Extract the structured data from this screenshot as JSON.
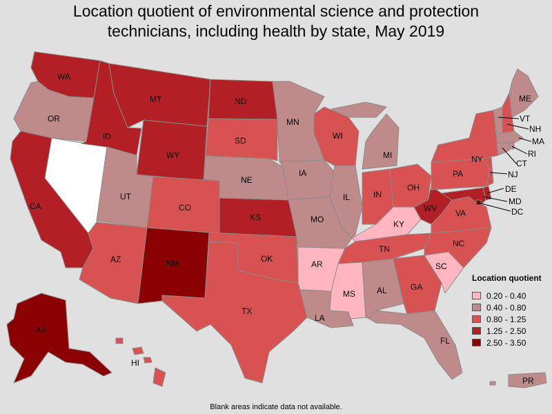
{
  "title": {
    "line1": "Location quotient of environmental science and protection",
    "line2": "technicians, including health by state, May 2019"
  },
  "legend": {
    "title": "Location quotient",
    "items": [
      {
        "label": "0.20 - 0.40",
        "color": "#ffb6c1"
      },
      {
        "label": "0.40 - 0.80",
        "color": "#bf8a8a"
      },
      {
        "label": "0.80 - 1.25",
        "color": "#d95252"
      },
      {
        "label": "1.25 - 2.50",
        "color": "#b21f24"
      },
      {
        "label": "2.50 - 3.50",
        "color": "#8b0000"
      }
    ]
  },
  "no_data_color": "#ffffff",
  "states": [
    {
      "code": "WA",
      "bin": 3
    },
    {
      "code": "OR",
      "bin": 1
    },
    {
      "code": "CA",
      "bin": 3
    },
    {
      "code": "NV",
      "bin": -1
    },
    {
      "code": "ID",
      "bin": 3
    },
    {
      "code": "MT",
      "bin": 3
    },
    {
      "code": "WY",
      "bin": 3
    },
    {
      "code": "UT",
      "bin": 1
    },
    {
      "code": "AZ",
      "bin": 2
    },
    {
      "code": "CO",
      "bin": 2
    },
    {
      "code": "NM",
      "bin": 4
    },
    {
      "code": "ND",
      "bin": 3
    },
    {
      "code": "SD",
      "bin": 2
    },
    {
      "code": "NE",
      "bin": 1
    },
    {
      "code": "KS",
      "bin": 3
    },
    {
      "code": "OK",
      "bin": 2
    },
    {
      "code": "TX",
      "bin": 2
    },
    {
      "code": "MN",
      "bin": 1
    },
    {
      "code": "IA",
      "bin": 1
    },
    {
      "code": "MO",
      "bin": 1
    },
    {
      "code": "AR",
      "bin": 0
    },
    {
      "code": "LA",
      "bin": 1
    },
    {
      "code": "WI",
      "bin": 2
    },
    {
      "code": "IL",
      "bin": 1
    },
    {
      "code": "MS",
      "bin": 0
    },
    {
      "code": "MI",
      "bin": 1
    },
    {
      "code": "IN",
      "bin": 2
    },
    {
      "code": "KY",
      "bin": 0
    },
    {
      "code": "TN",
      "bin": 2
    },
    {
      "code": "AL",
      "bin": 1
    },
    {
      "code": "OH",
      "bin": 2
    },
    {
      "code": "WV",
      "bin": 3
    },
    {
      "code": "GA",
      "bin": 2
    },
    {
      "code": "FL",
      "bin": 1
    },
    {
      "code": "SC",
      "bin": 0
    },
    {
      "code": "NC",
      "bin": 2
    },
    {
      "code": "VA",
      "bin": 2
    },
    {
      "code": "PA",
      "bin": 2
    },
    {
      "code": "NY",
      "bin": 2
    },
    {
      "code": "ME",
      "bin": 1
    },
    {
      "code": "VT",
      "bin": 1
    },
    {
      "code": "NH",
      "bin": 2
    },
    {
      "code": "MA",
      "bin": 1
    },
    {
      "code": "RI",
      "bin": 1
    },
    {
      "code": "CT",
      "bin": 1
    },
    {
      "code": "NJ",
      "bin": 2
    },
    {
      "code": "DE",
      "bin": 3
    },
    {
      "code": "MD",
      "bin": 3
    },
    {
      "code": "DC",
      "bin": 4
    },
    {
      "code": "AK",
      "bin": 4
    },
    {
      "code": "HI",
      "bin": 2
    },
    {
      "code": "PR",
      "bin": 1
    }
  ],
  "footnote": "Blank areas indicate data not available."
}
